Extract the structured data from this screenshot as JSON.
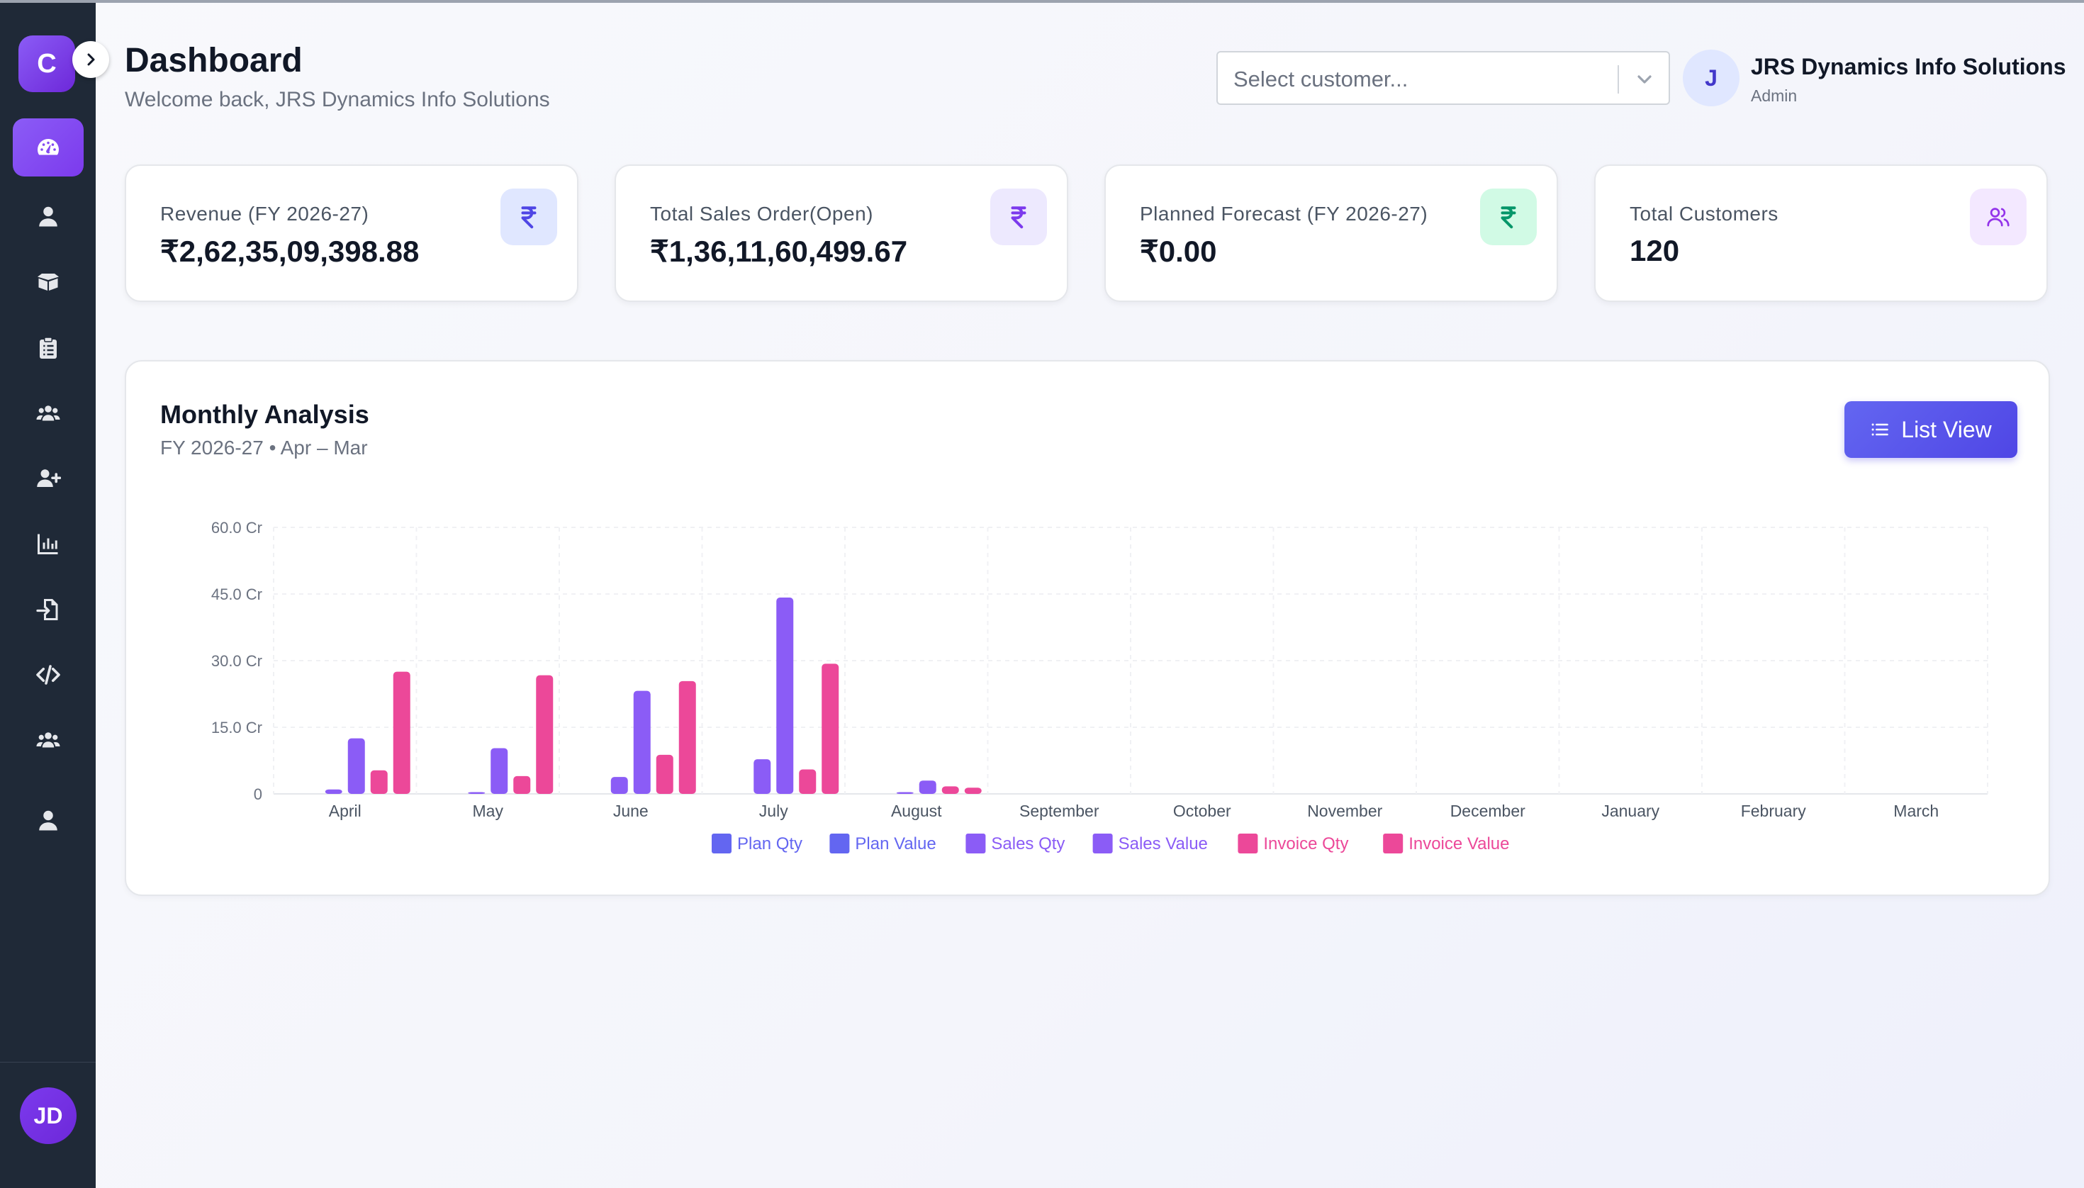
{
  "app": {
    "logo_letter": "C",
    "user_initials": "JD"
  },
  "sidebar": {
    "items": [
      {
        "icon": "dashboard-gauge-icon",
        "active": true
      },
      {
        "icon": "user-icon",
        "active": false
      },
      {
        "icon": "boxes-icon",
        "active": false
      },
      {
        "icon": "clipboard-list-icon",
        "active": false
      },
      {
        "icon": "users-group-icon",
        "active": false
      },
      {
        "icon": "user-plus-icon",
        "active": false
      },
      {
        "icon": "bar-chart-icon",
        "active": false
      },
      {
        "icon": "file-import-icon",
        "active": false
      },
      {
        "icon": "code-icon",
        "active": false
      },
      {
        "icon": "users-group-icon",
        "active": false
      },
      {
        "icon": "user-icon",
        "active": false
      }
    ]
  },
  "header": {
    "title": "Dashboard",
    "subtitle": "Welcome back, JRS Dynamics Info Solutions",
    "customer_select_placeholder": "Select customer...",
    "user_avatar_letter": "J",
    "user_name": "JRS Dynamics Info Solutions",
    "user_role": "Admin"
  },
  "kpis": [
    {
      "label": "Revenue (FY 2026-27)",
      "value": "₹2,62,35,09,398.88",
      "icon": "rupee-icon",
      "icon_color": "#4f46e5",
      "icon_bg": "#e0e7ff"
    },
    {
      "label": "Total Sales Order(Open)",
      "value": "₹1,36,11,60,499.67",
      "icon": "rupee-icon",
      "icon_color": "#7c3aed",
      "icon_bg": "#ede9fe"
    },
    {
      "label": "Planned Forecast (FY 2026-27)",
      "value": "₹0.00",
      "icon": "rupee-icon",
      "icon_color": "#059669",
      "icon_bg": "#d1fae5"
    },
    {
      "label": "Total Customers",
      "value": "120",
      "icon": "users-icon",
      "icon_color": "#9333ea",
      "icon_bg": "#f3e8ff"
    }
  ],
  "analysis": {
    "title": "Monthly Analysis",
    "subtitle": "FY 2026-27 • Apr – Mar",
    "list_view_label": "List View"
  },
  "chart_data": {
    "type": "bar",
    "categories": [
      "April",
      "May",
      "June",
      "July",
      "August",
      "September",
      "October",
      "November",
      "December",
      "January",
      "February",
      "March"
    ],
    "y_tick_labels": [
      "0",
      "15.0 Cr",
      "30.0 Cr",
      "45.0 Cr",
      "60.0 Cr"
    ],
    "ylim": [
      0,
      60
    ],
    "grid": true,
    "legend_position": "bottom",
    "series": [
      {
        "name": "Plan Qty",
        "color": "#6366f1",
        "values": [
          0,
          0,
          0,
          0,
          0,
          0,
          0,
          0,
          0,
          0,
          0,
          0
        ]
      },
      {
        "name": "Plan Value",
        "color": "#6366f1",
        "values": [
          0,
          0,
          0,
          0,
          0,
          0,
          0,
          0,
          0,
          0,
          0,
          0
        ]
      },
      {
        "name": "Sales Qty",
        "color": "#8b5cf6",
        "values": [
          1.0,
          0.4,
          3.8,
          7.8,
          0.4,
          0,
          0,
          0,
          0,
          0,
          0,
          0
        ]
      },
      {
        "name": "Sales Value",
        "color": "#8b5cf6",
        "values": [
          12.5,
          10.3,
          23.2,
          44.2,
          3.0,
          0,
          0,
          0,
          0,
          0,
          0,
          0
        ]
      },
      {
        "name": "Invoice Qty",
        "color": "#ec4899",
        "values": [
          5.3,
          4.0,
          8.8,
          5.5,
          1.7,
          0,
          0,
          0,
          0,
          0,
          0,
          0
        ]
      },
      {
        "name": "Invoice Value",
        "color": "#ec4899",
        "values": [
          27.5,
          26.7,
          25.4,
          29.3,
          1.4,
          0,
          0,
          0,
          0,
          0,
          0,
          0
        ]
      }
    ],
    "bar_colors_note": "Sales bars render in #8b5cf6; August Sales Value shown as 5.6 secondary bar uses same color",
    "extra_bars": [
      {
        "category": "August",
        "series": "Sales Value",
        "value": 5.6
      }
    ]
  }
}
